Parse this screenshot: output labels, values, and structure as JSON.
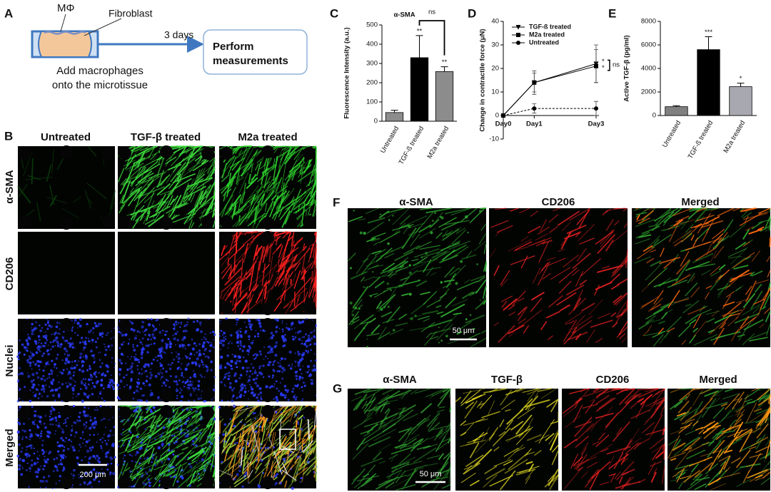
{
  "panel_a": {
    "letter": "A",
    "macrophage_label": "MΦ",
    "fibroblast_label": "Fibroblast",
    "arrow_label": "3 days",
    "box_lines": [
      "Perform",
      "measurements"
    ],
    "caption_lines": [
      "Add macrophages",
      "onto the microtissue"
    ]
  },
  "panel_b": {
    "letter": "B",
    "columns": [
      "Untreated",
      "TGF-β treated",
      "M2a treated"
    ],
    "rows": [
      "α-SMA",
      "CD206",
      "Nuclei",
      "Merged"
    ],
    "scale_bar": "200 μm"
  },
  "panel_f": {
    "letter": "F",
    "columns": [
      "α-SMA",
      "CD206",
      "Merged"
    ],
    "scale_bar": "50 μm"
  },
  "panel_g": {
    "letter": "G",
    "columns": [
      "α-SMA",
      "TGF-β",
      "CD206",
      "Merged"
    ],
    "scale_bar": "50 μm"
  },
  "chart_data": [
    {
      "type": "bar",
      "panel": "C",
      "title": "α-SMA",
      "y_label": "Fluorescence Intensity (a.u.)",
      "categories": [
        "Untreated",
        "TGF-ß treated",
        "M2a treated"
      ],
      "values": [
        45,
        330,
        258
      ],
      "errors": [
        12,
        115,
        25
      ],
      "colors": [
        "#8c8c8c",
        "#000000",
        "#8c8c8c"
      ],
      "significance": [
        null,
        "**",
        "**"
      ],
      "comparison_label": "ns",
      "ylim": [
        0,
        500
      ],
      "yticks": [
        0,
        100,
        200,
        300,
        400,
        500
      ]
    },
    {
      "type": "line",
      "panel": "D",
      "y_label": "Change in contractile force (μN)",
      "x": [
        0,
        1,
        3
      ],
      "xlim": [
        0,
        3
      ],
      "xticks": [
        {
          "value": 0,
          "label": "Day0"
        },
        {
          "value": 1,
          "label": "Day1"
        },
        {
          "value": 3,
          "label": "Day3"
        }
      ],
      "ylim": [
        -10,
        40
      ],
      "yticks": [
        -10,
        0,
        10,
        20,
        30,
        40
      ],
      "series": [
        {
          "name": "TGF-ß treated",
          "color": "#000000",
          "marker": "triangle-down",
          "values": [
            0,
            14,
            22
          ],
          "errors": [
            0,
            5,
            8
          ]
        },
        {
          "name": "M2a treated",
          "color": "#000000",
          "marker": "square",
          "values": [
            0,
            14,
            21
          ],
          "errors": [
            0,
            4,
            7
          ]
        },
        {
          "name": "Untreated",
          "color": "#000000",
          "marker": "circle",
          "values": [
            0,
            3,
            3
          ],
          "errors": [
            0,
            2,
            3
          ]
        }
      ],
      "annotations": [
        "*",
        "*",
        "ns"
      ],
      "legend": "upper-left"
    },
    {
      "type": "bar",
      "panel": "E",
      "y_label": "Active TGF-β (pg/ml)",
      "categories": [
        "Untreated",
        "TGF-ß treated",
        "M2a treated"
      ],
      "values": [
        750,
        5600,
        2450
      ],
      "errors": [
        80,
        1100,
        300
      ],
      "colors": [
        "#808080",
        "#000000",
        "#a8a8b0"
      ],
      "significance": [
        null,
        "***",
        "*"
      ],
      "ylim": [
        0,
        8000
      ],
      "yticks": [
        0,
        2000,
        4000,
        6000,
        8000
      ]
    }
  ]
}
